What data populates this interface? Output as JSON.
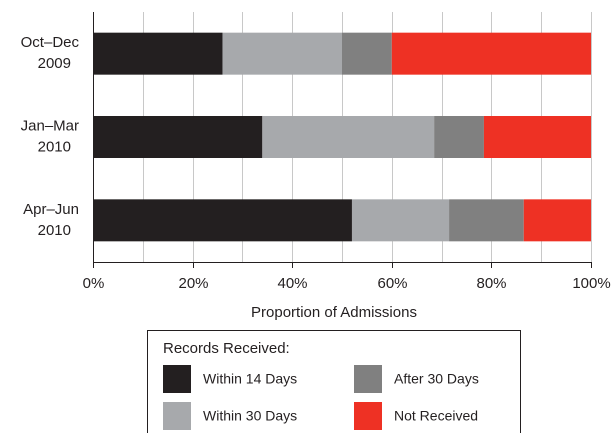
{
  "chart_data": {
    "type": "stacked_barh",
    "categories": [
      "Oct–Dec 2009",
      "Jan–Mar 2010",
      "Apr–Jun 2010"
    ],
    "series": [
      {
        "name": "Within 14 Days",
        "color": "#231f20",
        "values": [
          26,
          34,
          52
        ]
      },
      {
        "name": "Within 30 Days",
        "color": "#a7a9ac",
        "values": [
          24,
          34.5,
          19.5
        ]
      },
      {
        "name": "After 30 Days",
        "color": "#808080",
        "values": [
          10,
          10,
          15
        ]
      },
      {
        "name": "Not Received",
        "color": "#ee3124",
        "values": [
          40,
          21.5,
          13.5
        ]
      }
    ],
    "xlim": [
      0,
      100
    ],
    "xticks": [
      {
        "value": 0,
        "label": "0%"
      },
      {
        "value": 20,
        "label": "20%"
      },
      {
        "value": 40,
        "label": "40%"
      },
      {
        "value": 60,
        "label": "60%"
      },
      {
        "value": 80,
        "label": "80%"
      },
      {
        "value": 100,
        "label": "100%"
      }
    ],
    "minor_xticks": [
      10,
      30,
      50,
      70,
      90
    ],
    "xlabel": "Proportion of Admissions",
    "legend_title": "Records Received:",
    "legend_position": "bottom",
    "grid": true
  }
}
